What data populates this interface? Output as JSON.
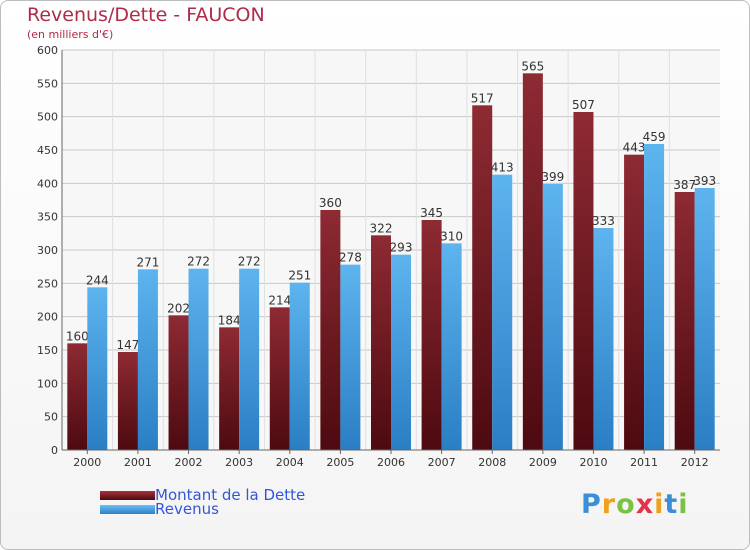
{
  "chart_data": {
    "type": "bar",
    "title": "Revenus/Dette - FAUCON",
    "subtitle": "(en milliers d'€)",
    "categories": [
      "2000",
      "2001",
      "2002",
      "2003",
      "2004",
      "2005",
      "2006",
      "2007",
      "2008",
      "2009",
      "2010",
      "2011",
      "2012"
    ],
    "series": [
      {
        "name": "Montant de la Dette",
        "color": "#7a1a22",
        "values": [
          160,
          147,
          202,
          184,
          214,
          360,
          322,
          345,
          517,
          565,
          507,
          443,
          387
        ]
      },
      {
        "name": "Revenus",
        "color": "#4aa3e6",
        "values": [
          244,
          271,
          272,
          272,
          251,
          278,
          293,
          310,
          413,
          399,
          333,
          459,
          393
        ]
      }
    ],
    "ylim": [
      0,
      600
    ],
    "ytick_step": 50,
    "grid": true,
    "legend_position": "bottom-left"
  },
  "logo": {
    "letters": [
      "P",
      "r",
      "o",
      "x",
      "i",
      "t",
      "i"
    ],
    "colors": [
      "#3b8fd6",
      "#f2a01c",
      "#7cc242",
      "#e2334a",
      "#f2a01c",
      "#3b8fd6",
      "#7cc242"
    ]
  }
}
